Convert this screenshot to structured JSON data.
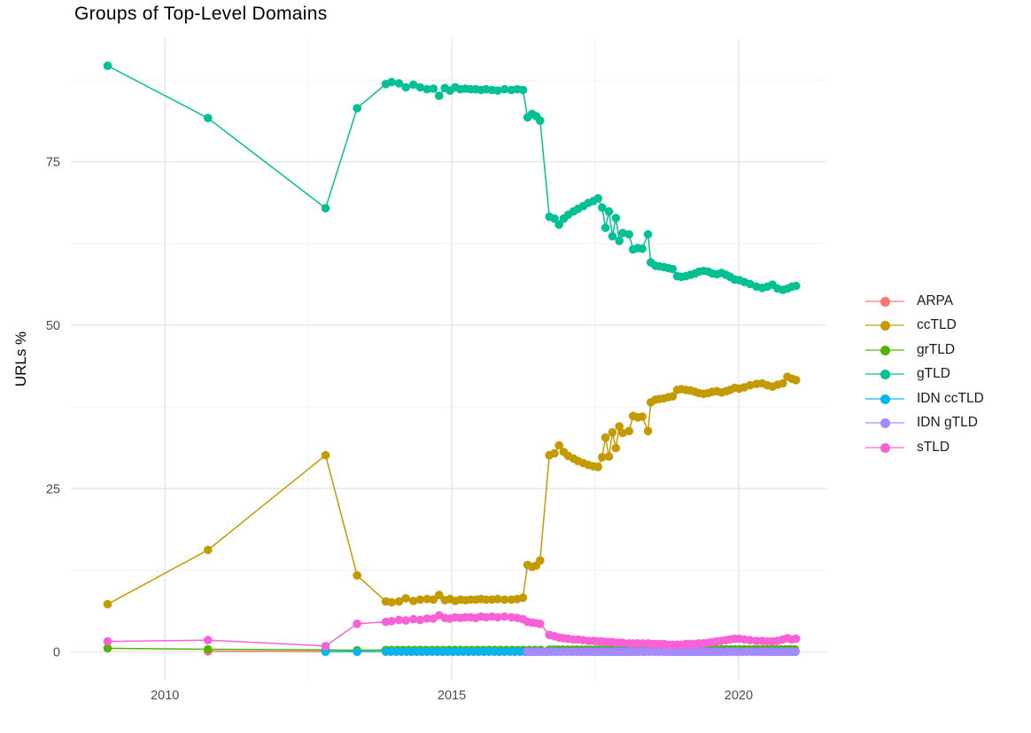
{
  "chart_data": {
    "type": "line",
    "title": "Groups of Top-Level Domains",
    "xlabel": "",
    "ylabel": "URLs %",
    "grid": true,
    "legend_position": "right",
    "x_axis": {
      "domain": [
        2008.36,
        2021.53
      ],
      "ticks": [
        {
          "value": 2010,
          "label": "2010"
        },
        {
          "value": 2015,
          "label": "2015"
        },
        {
          "value": 2020,
          "label": "2020"
        }
      ],
      "minor_ticks": [
        2012.5,
        2017.5
      ]
    },
    "y_axis": {
      "domain": [
        -4.41,
        93.93
      ],
      "ticks": [
        {
          "value": 0,
          "label": "0"
        },
        {
          "value": 25,
          "label": "25"
        },
        {
          "value": 50,
          "label": "50"
        },
        {
          "value": 75,
          "label": "75"
        }
      ],
      "minor_ticks": [
        12.5,
        37.5,
        62.5,
        87.5
      ]
    },
    "grid_colors": {
      "major": "#e4e4e4",
      "minor": "#f2f2f2"
    },
    "axis_text_color": "#4d4d4d",
    "series": [
      {
        "name": "ARPA",
        "color": "#F8766D",
        "points": [
          [
            2010.75,
            0.1
          ],
          [
            2012.8,
            0.07
          ],
          [
            2013.35,
            0.05
          ]
        ],
        "flat": [
          {
            "from": 2013.85,
            "to": 2021.0,
            "step": 0.09,
            "y": 0.03
          }
        ]
      },
      {
        "name": "ccTLD",
        "color": "#C49A00",
        "points": [
          [
            2009,
            7.3
          ],
          [
            2010.75,
            15.6
          ],
          [
            2012.8,
            30.1
          ],
          [
            2013.35,
            11.7
          ],
          [
            2013.85,
            7.7
          ],
          [
            2013.95,
            7.6
          ],
          [
            2014.08,
            7.7
          ],
          [
            2014.2,
            8.2
          ],
          [
            2014.33,
            7.8
          ],
          [
            2014.45,
            8.0
          ],
          [
            2014.57,
            8.1
          ],
          [
            2014.68,
            8.0
          ],
          [
            2014.78,
            8.7
          ],
          [
            2014.88,
            7.9
          ],
          [
            2014.97,
            8.1
          ],
          [
            2015.06,
            7.8
          ],
          [
            2015.15,
            8.0
          ],
          [
            2015.24,
            7.9
          ],
          [
            2015.33,
            8.0
          ],
          [
            2015.42,
            8.0
          ],
          [
            2015.51,
            8.1
          ],
          [
            2015.6,
            8.0
          ],
          [
            2015.7,
            8.0
          ],
          [
            2015.8,
            8.1
          ],
          [
            2015.92,
            8.0
          ],
          [
            2016.04,
            8.0
          ],
          [
            2016.14,
            8.1
          ],
          [
            2016.24,
            8.3
          ],
          [
            2016.32,
            13.3
          ],
          [
            2016.4,
            13.0
          ],
          [
            2016.47,
            13.2
          ],
          [
            2016.54,
            14.0
          ],
          [
            2016.7,
            30.1
          ],
          [
            2016.79,
            30.4
          ],
          [
            2016.87,
            31.6
          ],
          [
            2016.95,
            30.6
          ],
          [
            2017.03,
            30.0
          ],
          [
            2017.12,
            29.6
          ],
          [
            2017.2,
            29.2
          ],
          [
            2017.29,
            28.9
          ],
          [
            2017.38,
            28.6
          ],
          [
            2017.47,
            28.4
          ],
          [
            2017.55,
            28.3
          ],
          [
            2017.62,
            29.8
          ],
          [
            2017.68,
            32.8
          ],
          [
            2017.74,
            29.9
          ],
          [
            2017.8,
            33.6
          ],
          [
            2017.86,
            31.2
          ],
          [
            2017.92,
            34.5
          ],
          [
            2017.98,
            33.5
          ],
          [
            2018.09,
            33.8
          ],
          [
            2018.16,
            36.1
          ],
          [
            2018.24,
            35.9
          ],
          [
            2018.32,
            36.0
          ],
          [
            2018.42,
            33.8
          ],
          [
            2018.47,
            38.2
          ],
          [
            2018.55,
            38.6
          ],
          [
            2018.62,
            38.7
          ],
          [
            2018.7,
            38.8
          ],
          [
            2018.78,
            39.0
          ],
          [
            2018.85,
            39.1
          ],
          [
            2018.93,
            40.1
          ],
          [
            2019.0,
            40.2
          ],
          [
            2019.08,
            40.1
          ],
          [
            2019.16,
            40.0
          ],
          [
            2019.24,
            39.8
          ],
          [
            2019.31,
            39.6
          ],
          [
            2019.39,
            39.5
          ],
          [
            2019.47,
            39.6
          ],
          [
            2019.54,
            39.8
          ],
          [
            2019.62,
            39.9
          ],
          [
            2019.7,
            39.7
          ],
          [
            2019.78,
            39.9
          ],
          [
            2019.85,
            40.1
          ],
          [
            2019.93,
            40.4
          ],
          [
            2020.01,
            40.3
          ],
          [
            2020.1,
            40.5
          ],
          [
            2020.2,
            40.8
          ],
          [
            2020.31,
            41.0
          ],
          [
            2020.41,
            41.1
          ],
          [
            2020.5,
            40.8
          ],
          [
            2020.59,
            40.6
          ],
          [
            2020.68,
            40.9
          ],
          [
            2020.77,
            41.1
          ],
          [
            2020.85,
            42.1
          ],
          [
            2020.93,
            41.8
          ],
          [
            2021.0,
            41.6
          ]
        ]
      },
      {
        "name": "grTLD",
        "color": "#53B400",
        "points": [
          [
            2009,
            0.55
          ],
          [
            2010.75,
            0.4
          ],
          [
            2012.8,
            0.3
          ],
          [
            2013.35,
            0.25
          ]
        ],
        "flat": [
          {
            "from": 2013.85,
            "to": 2016.6,
            "step": 0.1,
            "y": 0.3
          },
          {
            "from": 2016.7,
            "to": 2018.45,
            "step": 0.08,
            "y": 0.35
          },
          {
            "from": 2018.5,
            "to": 2021.0,
            "step": 0.08,
            "y": 0.4
          }
        ]
      },
      {
        "name": "gTLD",
        "color": "#00C094",
        "points": [
          [
            2009,
            89.7
          ],
          [
            2010.75,
            81.7
          ],
          [
            2012.8,
            67.9
          ],
          [
            2013.35,
            83.2
          ],
          [
            2013.85,
            86.9
          ],
          [
            2013.95,
            87.2
          ],
          [
            2014.08,
            87.0
          ],
          [
            2014.2,
            86.4
          ],
          [
            2014.33,
            86.8
          ],
          [
            2014.45,
            86.4
          ],
          [
            2014.57,
            86.1
          ],
          [
            2014.68,
            86.2
          ],
          [
            2014.78,
            85.1
          ],
          [
            2014.88,
            86.3
          ],
          [
            2014.97,
            85.9
          ],
          [
            2015.06,
            86.4
          ],
          [
            2015.15,
            86.1
          ],
          [
            2015.24,
            86.2
          ],
          [
            2015.33,
            86.1
          ],
          [
            2015.42,
            86.1
          ],
          [
            2015.51,
            86.0
          ],
          [
            2015.6,
            86.1
          ],
          [
            2015.7,
            86.0
          ],
          [
            2015.8,
            85.9
          ],
          [
            2015.92,
            86.1
          ],
          [
            2016.04,
            86.0
          ],
          [
            2016.14,
            86.1
          ],
          [
            2016.24,
            86.0
          ],
          [
            2016.32,
            81.8
          ],
          [
            2016.4,
            82.3
          ],
          [
            2016.47,
            82.0
          ],
          [
            2016.54,
            81.3
          ],
          [
            2016.7,
            66.6
          ],
          [
            2016.79,
            66.3
          ],
          [
            2016.87,
            65.4
          ],
          [
            2016.95,
            66.3
          ],
          [
            2017.03,
            66.9
          ],
          [
            2017.12,
            67.4
          ],
          [
            2017.2,
            67.8
          ],
          [
            2017.29,
            68.2
          ],
          [
            2017.38,
            68.7
          ],
          [
            2017.47,
            69.0
          ],
          [
            2017.55,
            69.4
          ],
          [
            2017.62,
            68.0
          ],
          [
            2017.68,
            64.9
          ],
          [
            2017.74,
            67.4
          ],
          [
            2017.8,
            63.6
          ],
          [
            2017.86,
            66.4
          ],
          [
            2017.92,
            62.9
          ],
          [
            2017.98,
            64.1
          ],
          [
            2018.09,
            63.9
          ],
          [
            2018.16,
            61.6
          ],
          [
            2018.24,
            61.8
          ],
          [
            2018.32,
            61.7
          ],
          [
            2018.42,
            63.9
          ],
          [
            2018.47,
            59.6
          ],
          [
            2018.55,
            59.1
          ],
          [
            2018.62,
            59.0
          ],
          [
            2018.7,
            58.9
          ],
          [
            2018.78,
            58.7
          ],
          [
            2018.85,
            58.6
          ],
          [
            2018.93,
            57.5
          ],
          [
            2019.0,
            57.4
          ],
          [
            2019.08,
            57.5
          ],
          [
            2019.16,
            57.7
          ],
          [
            2019.24,
            57.9
          ],
          [
            2019.31,
            58.2
          ],
          [
            2019.39,
            58.3
          ],
          [
            2019.47,
            58.2
          ],
          [
            2019.54,
            57.9
          ],
          [
            2019.62,
            57.8
          ],
          [
            2019.7,
            58.0
          ],
          [
            2019.78,
            57.7
          ],
          [
            2019.85,
            57.4
          ],
          [
            2019.93,
            57.0
          ],
          [
            2020.01,
            56.9
          ],
          [
            2020.1,
            56.6
          ],
          [
            2020.2,
            56.3
          ],
          [
            2020.31,
            55.9
          ],
          [
            2020.41,
            55.7
          ],
          [
            2020.5,
            55.9
          ],
          [
            2020.59,
            56.2
          ],
          [
            2020.68,
            55.6
          ],
          [
            2020.77,
            55.4
          ],
          [
            2020.85,
            55.6
          ],
          [
            2020.93,
            55.9
          ],
          [
            2021.0,
            56.0
          ]
        ]
      },
      {
        "name": "IDN ccTLD",
        "color": "#00B6EB",
        "points": [
          [
            2012.8,
            0.02
          ],
          [
            2013.35,
            0.03
          ]
        ],
        "flat": [
          {
            "from": 2013.85,
            "to": 2021.0,
            "step": 0.09,
            "y": 0.05
          }
        ]
      },
      {
        "name": "IDN gTLD",
        "color": "#A58AFF",
        "flat": [
          {
            "from": 2016.32,
            "to": 2021.0,
            "step": 0.085,
            "y": 0.02
          }
        ]
      },
      {
        "name": "sTLD",
        "color": "#FB61D7",
        "points": [
          [
            2009,
            1.6
          ],
          [
            2010.75,
            1.8
          ],
          [
            2012.8,
            0.9
          ],
          [
            2013.35,
            4.3
          ],
          [
            2013.85,
            4.6
          ],
          [
            2013.95,
            4.7
          ],
          [
            2014.08,
            4.9
          ],
          [
            2014.2,
            4.8
          ],
          [
            2014.33,
            5.0
          ],
          [
            2014.45,
            4.9
          ],
          [
            2014.57,
            5.1
          ],
          [
            2014.68,
            5.1
          ],
          [
            2014.78,
            5.6
          ],
          [
            2014.88,
            5.2
          ],
          [
            2014.97,
            5.1
          ],
          [
            2015.06,
            5.3
          ],
          [
            2015.15,
            5.2
          ],
          [
            2015.24,
            5.3
          ],
          [
            2015.33,
            5.3
          ],
          [
            2015.42,
            5.2
          ],
          [
            2015.51,
            5.4
          ],
          [
            2015.6,
            5.3
          ],
          [
            2015.7,
            5.4
          ],
          [
            2015.8,
            5.3
          ],
          [
            2015.92,
            5.4
          ],
          [
            2016.04,
            5.3
          ],
          [
            2016.14,
            5.2
          ],
          [
            2016.24,
            5.0
          ],
          [
            2016.32,
            4.6
          ],
          [
            2016.4,
            4.5
          ],
          [
            2016.47,
            4.4
          ],
          [
            2016.54,
            4.3
          ],
          [
            2016.7,
            2.6
          ],
          [
            2016.79,
            2.4
          ],
          [
            2016.87,
            2.2
          ],
          [
            2016.95,
            2.1
          ],
          [
            2017.03,
            2.0
          ],
          [
            2017.12,
            1.9
          ],
          [
            2017.2,
            1.9
          ],
          [
            2017.29,
            1.8
          ],
          [
            2017.38,
            1.7
          ],
          [
            2017.47,
            1.7
          ],
          [
            2017.55,
            1.6
          ],
          [
            2017.62,
            1.6
          ],
          [
            2017.68,
            1.5
          ],
          [
            2017.74,
            1.5
          ],
          [
            2017.8,
            1.5
          ],
          [
            2017.86,
            1.4
          ],
          [
            2017.92,
            1.4
          ],
          [
            2017.98,
            1.4
          ],
          [
            2018.09,
            1.3
          ],
          [
            2018.16,
            1.3
          ],
          [
            2018.24,
            1.3
          ],
          [
            2018.32,
            1.3
          ],
          [
            2018.42,
            1.3
          ],
          [
            2018.47,
            1.2
          ],
          [
            2018.55,
            1.2
          ],
          [
            2018.62,
            1.2
          ],
          [
            2018.7,
            1.2
          ],
          [
            2018.78,
            1.1
          ],
          [
            2018.85,
            1.1
          ],
          [
            2018.93,
            1.1
          ],
          [
            2019.0,
            1.1
          ],
          [
            2019.08,
            1.2
          ],
          [
            2019.16,
            1.2
          ],
          [
            2019.24,
            1.2
          ],
          [
            2019.31,
            1.3
          ],
          [
            2019.39,
            1.3
          ],
          [
            2019.47,
            1.4
          ],
          [
            2019.54,
            1.5
          ],
          [
            2019.62,
            1.6
          ],
          [
            2019.7,
            1.7
          ],
          [
            2019.78,
            1.8
          ],
          [
            2019.85,
            1.9
          ],
          [
            2019.93,
            2.0
          ],
          [
            2020.01,
            2.0
          ],
          [
            2020.1,
            1.9
          ],
          [
            2020.2,
            1.8
          ],
          [
            2020.31,
            1.7
          ],
          [
            2020.41,
            1.7
          ],
          [
            2020.5,
            1.6
          ],
          [
            2020.59,
            1.6
          ],
          [
            2020.68,
            1.7
          ],
          [
            2020.77,
            1.9
          ],
          [
            2020.85,
            2.1
          ],
          [
            2020.93,
            1.9
          ],
          [
            2021.0,
            2.0
          ]
        ]
      }
    ]
  }
}
